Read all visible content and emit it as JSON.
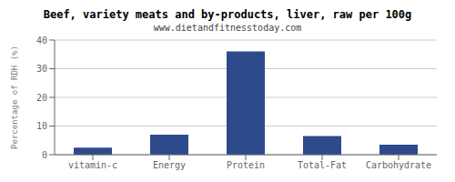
{
  "chart_data": {
    "type": "bar",
    "title": "Beef, variety meats and by-products, liver, raw per 100g",
    "subtitle": "www.dietandfitnesstoday.com",
    "ylabel": "Percentage of RDH (%)",
    "categories": [
      "vitamin-c",
      "Energy",
      "Protein",
      "Total-Fat",
      "Carbohydrate"
    ],
    "values": [
      2.5,
      7.0,
      36.0,
      6.5,
      3.5
    ],
    "color": "#2d4a8c",
    "ylim": [
      0,
      40
    ],
    "yticks": [
      0,
      10,
      20,
      30,
      40
    ],
    "grid": true
  }
}
